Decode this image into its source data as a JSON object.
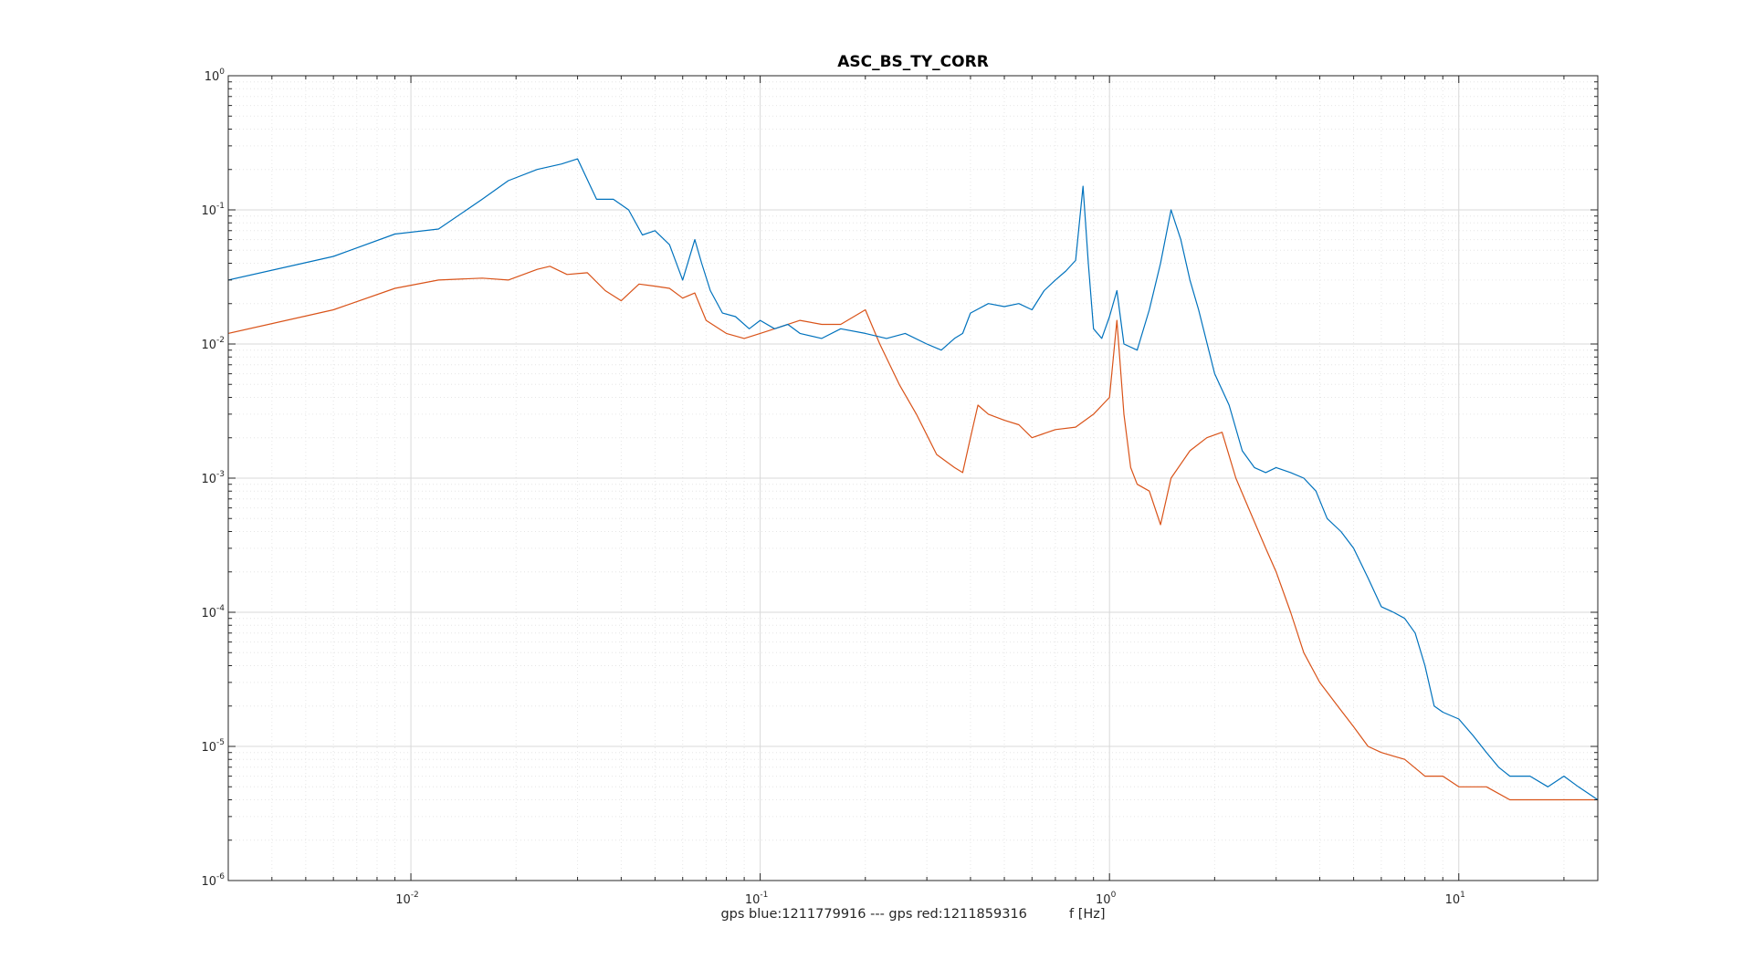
{
  "chart_data": {
    "type": "line",
    "title": "ASC_BS_TY_CORR",
    "xlabel": "gps blue:1211779916 --- gps red:1211859316          f [Hz]",
    "ylabel": "",
    "x_scale": "log",
    "y_scale": "log",
    "xlim": [
      0.003,
      25
    ],
    "ylim": [
      1e-06,
      1
    ],
    "grid": "on (major and minor)",
    "x_ticks": [
      {
        "base": "10",
        "exp": "-2",
        "value": 0.01
      },
      {
        "base": "10",
        "exp": "-1",
        "value": 0.1
      },
      {
        "base": "10",
        "exp": "0",
        "value": 1
      },
      {
        "base": "10",
        "exp": "1",
        "value": 10
      }
    ],
    "y_ticks": [
      {
        "base": "10",
        "exp": "0",
        "value": 1
      },
      {
        "base": "10",
        "exp": "-1",
        "value": 0.1
      },
      {
        "base": "10",
        "exp": "-2",
        "value": 0.01
      },
      {
        "base": "10",
        "exp": "-3",
        "value": 0.001
      },
      {
        "base": "10",
        "exp": "-4",
        "value": 0.0001
      },
      {
        "base": "10",
        "exp": "-5",
        "value": 1e-05
      },
      {
        "base": "10",
        "exp": "-6",
        "value": 1e-06
      }
    ],
    "series": [
      {
        "color": "#0072bd",
        "x": [
          0.003,
          0.006,
          0.009,
          0.012,
          0.016,
          0.019,
          0.023,
          0.027,
          0.03,
          0.034,
          0.038,
          0.042,
          0.046,
          0.05,
          0.055,
          0.06,
          0.065,
          0.068,
          0.072,
          0.078,
          0.085,
          0.093,
          0.1,
          0.11,
          0.12,
          0.13,
          0.15,
          0.17,
          0.2,
          0.23,
          0.26,
          0.3,
          0.33,
          0.36,
          0.38,
          0.4,
          0.45,
          0.5,
          0.55,
          0.6,
          0.65,
          0.7,
          0.75,
          0.8,
          0.84,
          0.87,
          0.9,
          0.95,
          1.0,
          1.05,
          1.1,
          1.2,
          1.3,
          1.4,
          1.5,
          1.6,
          1.7,
          1.8,
          2.0,
          2.2,
          2.4,
          2.6,
          2.8,
          3.0,
          3.3,
          3.6,
          3.9,
          4.2,
          4.6,
          5.0,
          5.5,
          6.0,
          6.5,
          7.0,
          7.5,
          8.0,
          8.5,
          9.0,
          10.0,
          11.0,
          12.0,
          13.0,
          14.0,
          16.0,
          18.0,
          20.0,
          22.0,
          25.0
        ],
        "y": [
          0.03,
          0.045,
          0.066,
          0.072,
          0.12,
          0.165,
          0.2,
          0.22,
          0.24,
          0.12,
          0.12,
          0.1,
          0.065,
          0.07,
          0.055,
          0.03,
          0.06,
          0.04,
          0.025,
          0.017,
          0.016,
          0.013,
          0.015,
          0.013,
          0.014,
          0.012,
          0.011,
          0.013,
          0.012,
          0.011,
          0.012,
          0.01,
          0.009,
          0.011,
          0.012,
          0.017,
          0.02,
          0.019,
          0.02,
          0.018,
          0.025,
          0.03,
          0.035,
          0.042,
          0.15,
          0.04,
          0.013,
          0.011,
          0.016,
          0.025,
          0.01,
          0.009,
          0.018,
          0.04,
          0.1,
          0.06,
          0.03,
          0.018,
          0.006,
          0.0035,
          0.0016,
          0.0012,
          0.0011,
          0.0012,
          0.0011,
          0.001,
          0.0008,
          0.0005,
          0.0004,
          0.0003,
          0.00018,
          0.00011,
          0.0001,
          9e-05,
          7e-05,
          4e-05,
          2e-05,
          1.8e-05,
          1.6e-05,
          1.2e-05,
          9e-06,
          7e-06,
          6e-06,
          6e-06,
          5e-06,
          6e-06,
          5e-06,
          4e-06
        ]
      },
      {
        "color": "#d95319",
        "x": [
          0.003,
          0.006,
          0.009,
          0.012,
          0.016,
          0.019,
          0.023,
          0.025,
          0.028,
          0.032,
          0.036,
          0.04,
          0.045,
          0.05,
          0.055,
          0.06,
          0.065,
          0.07,
          0.08,
          0.09,
          0.1,
          0.11,
          0.13,
          0.15,
          0.17,
          0.2,
          0.22,
          0.25,
          0.28,
          0.32,
          0.36,
          0.38,
          0.4,
          0.42,
          0.45,
          0.5,
          0.55,
          0.6,
          0.7,
          0.8,
          0.9,
          1.0,
          1.05,
          1.1,
          1.15,
          1.2,
          1.3,
          1.4,
          1.5,
          1.7,
          1.9,
          2.1,
          2.3,
          2.5,
          2.8,
          3.0,
          3.3,
          3.6,
          4.0,
          4.5,
          5.0,
          5.5,
          6.0,
          7.0,
          8.0,
          9.0,
          10.0,
          12.0,
          14.0,
          16.0,
          18.0,
          20.0,
          22.0,
          25.0
        ],
        "y": [
          0.012,
          0.018,
          0.026,
          0.03,
          0.031,
          0.03,
          0.036,
          0.038,
          0.033,
          0.034,
          0.025,
          0.021,
          0.028,
          0.027,
          0.026,
          0.022,
          0.024,
          0.015,
          0.012,
          0.011,
          0.012,
          0.013,
          0.015,
          0.014,
          0.014,
          0.018,
          0.01,
          0.005,
          0.003,
          0.0015,
          0.0012,
          0.0011,
          0.002,
          0.0035,
          0.003,
          0.0027,
          0.0025,
          0.002,
          0.0023,
          0.0024,
          0.003,
          0.004,
          0.015,
          0.003,
          0.0012,
          0.0009,
          0.0008,
          0.00045,
          0.001,
          0.0016,
          0.002,
          0.0022,
          0.001,
          0.0006,
          0.0003,
          0.0002,
          0.0001,
          5e-05,
          3e-05,
          2e-05,
          1.4e-05,
          1e-05,
          9e-06,
          8e-06,
          6e-06,
          6e-06,
          5e-06,
          5e-06,
          4e-06,
          4e-06,
          4e-06,
          4e-06,
          4e-06,
          4e-06
        ]
      }
    ]
  }
}
